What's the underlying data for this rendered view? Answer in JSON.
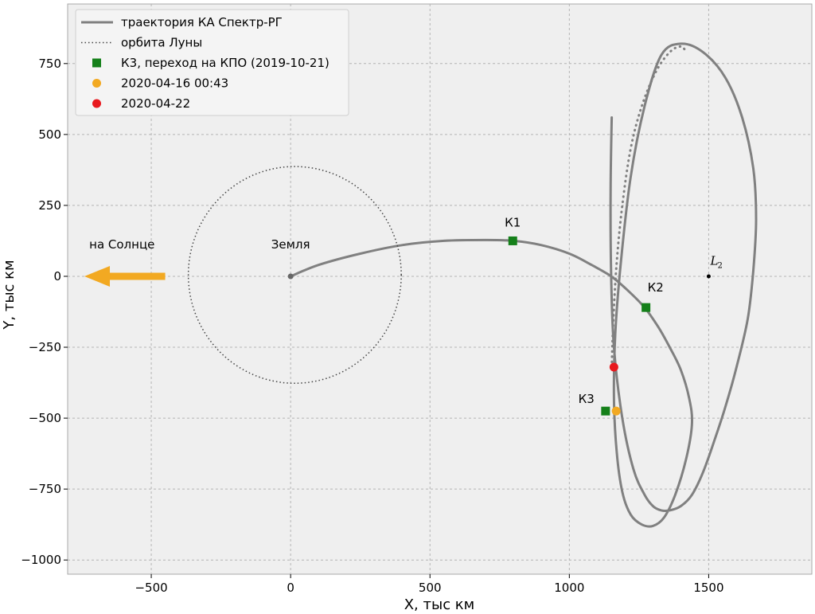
{
  "chart_data": {
    "type": "line",
    "xlabel": "X, тыс км",
    "ylabel": "Y, тыс км",
    "xlim": [
      -800,
      1870
    ],
    "ylim": [
      -1050,
      960
    ],
    "xticks": [
      -500,
      0,
      500,
      1000,
      1500
    ],
    "xtick_labels": [
      "−500",
      "0",
      "500",
      "1000",
      "1500"
    ],
    "yticks": [
      750,
      500,
      250,
      0,
      -250,
      -500,
      -750,
      -1000
    ],
    "ytick_labels": [
      "750",
      "500",
      "250",
      "0",
      "−250",
      "−500",
      "−750",
      "−1000"
    ],
    "grid": true,
    "legend_position": "top-left",
    "legend": [
      {
        "label": "траектория КА Спектр-РГ",
        "marker": "line",
        "color": "#808080"
      },
      {
        "label": "орбита Луны",
        "marker": "dotted-line",
        "color": "#444444"
      },
      {
        "label": "К3, переход на КПО (2019-10-21)",
        "marker": "square",
        "color": "#15801a"
      },
      {
        "label": "2020-04-16 00:43",
        "marker": "circle",
        "color": "#f2a922"
      },
      {
        "label": "2020-04-22",
        "marker": "circle",
        "color": "#e8191e"
      }
    ],
    "series": [
      {
        "name": "траектория КА Спектр-РГ",
        "color": "#808080",
        "style": "solid",
        "x": [
          0,
          100,
          250,
          400,
          550,
          700,
          800,
          900,
          1000,
          1080,
          1150,
          1210,
          1270,
          1320,
          1360,
          1400,
          1430,
          1440,
          1420,
          1380,
          1340,
          1300,
          1260,
          1220,
          1190,
          1170,
          1160,
          1165,
          1185,
          1220,
          1270,
          1330,
          1400,
          1480,
          1560,
          1620,
          1660,
          1670,
          1660,
          1640,
          1600,
          1560,
          1520,
          1480,
          1440,
          1400,
          1360,
          1330,
          1300,
          1270,
          1230,
          1190,
          1160,
          1150,
          1148,
          1152
        ],
        "y": [
          0,
          40,
          80,
          110,
          125,
          128,
          125,
          110,
          80,
          40,
          0,
          -50,
          -110,
          -180,
          -250,
          -330,
          -430,
          -520,
          -640,
          -770,
          -850,
          -880,
          -875,
          -840,
          -760,
          -620,
          -430,
          -200,
          50,
          350,
          600,
          780,
          820,
          790,
          700,
          560,
          380,
          200,
          20,
          -150,
          -320,
          -460,
          -580,
          -690,
          -770,
          -810,
          -825,
          -825,
          -810,
          -770,
          -680,
          -500,
          -250,
          0,
          300,
          560
        ]
      },
      {
        "name": "траектория КА Спектр-РГ (пунктир)",
        "color": "#808080",
        "style": "dotted",
        "x": [
          1152,
          1158,
          1170,
          1190,
          1220,
          1260,
          1310,
          1360,
          1400,
          1420
        ],
        "y": [
          -320,
          -150,
          50,
          250,
          450,
          600,
          720,
          790,
          810,
          790
        ]
      },
      {
        "name": "орбита Луны",
        "color": "#444444",
        "style": "dotted",
        "circle": {
          "cx": 15,
          "cy": 5,
          "r": 382
        }
      }
    ],
    "points": [
      {
        "label": "К1",
        "x": 797,
        "y": 125,
        "marker": "square",
        "color": "#15801a"
      },
      {
        "label": "К2",
        "x": 1275,
        "y": -110,
        "marker": "square",
        "color": "#15801a"
      },
      {
        "label": "К3",
        "x": 1130,
        "y": -475,
        "marker": "square",
        "color": "#15801a"
      },
      {
        "label": "",
        "x": 1168,
        "y": -475,
        "marker": "circle",
        "color": "#f2a922"
      },
      {
        "label": "",
        "x": 1160,
        "y": -320,
        "marker": "circle",
        "color": "#e8191e"
      },
      {
        "label": "",
        "x": 0,
        "y": 0,
        "marker": "dot",
        "color": "#666666"
      },
      {
        "label": "",
        "x": 1500,
        "y": 0,
        "marker": "dot",
        "color": "#000000"
      }
    ],
    "annotations": [
      {
        "text": "Земля",
        "x": 0,
        "y": 65
      },
      {
        "text": "на Солнце",
        "x": -605,
        "y": 65
      },
      {
        "text": "L",
        "subscript": "2",
        "x": 1540,
        "y": 35
      },
      {
        "text": "arrow",
        "from_x": -450,
        "to_x": -740,
        "y": 0,
        "color": "#f2a922"
      }
    ]
  }
}
